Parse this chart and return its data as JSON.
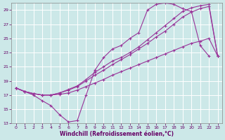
{
  "xlabel": "Windchill (Refroidissement éolien,°C)",
  "xlim": [
    -0.5,
    23.5
  ],
  "ylim": [
    13,
    30
  ],
  "xticks": [
    0,
    1,
    2,
    3,
    4,
    5,
    6,
    7,
    8,
    9,
    10,
    11,
    12,
    13,
    14,
    15,
    16,
    17,
    18,
    19,
    20,
    21,
    22,
    23
  ],
  "yticks": [
    13,
    15,
    17,
    19,
    21,
    23,
    25,
    27,
    29
  ],
  "bg_color": "#cce8e8",
  "grid_color": "#ffffff",
  "line_color": "#993399",
  "lines": [
    {
      "x": [
        0,
        1,
        2,
        3,
        4,
        5,
        6,
        7,
        8,
        9,
        10,
        11,
        12,
        13,
        14,
        15,
        16,
        17,
        18,
        19,
        20,
        21,
        22
      ],
      "y": [
        18,
        17.5,
        17,
        16.2,
        15.5,
        14.2,
        13.2,
        13.4,
        17,
        20.5,
        22.3,
        23.5,
        24,
        25,
        25.8,
        29,
        29.8,
        30,
        29.8,
        29.2,
        28.8,
        24,
        22.5
      ]
    },
    {
      "x": [
        0,
        1,
        2,
        3,
        4,
        5,
        6,
        7,
        8,
        9,
        10,
        11,
        12,
        13,
        14,
        15,
        16,
        17,
        18,
        19,
        20,
        21,
        22,
        23
      ],
      "y": [
        18,
        17.5,
        17.2,
        17,
        17,
        17.3,
        17.8,
        18.3,
        19.2,
        20.2,
        21,
        21.8,
        22.3,
        23,
        23.8,
        24.8,
        25.8,
        26.8,
        27.8,
        28.8,
        29.3,
        29.6,
        29.8,
        22.5
      ]
    },
    {
      "x": [
        0,
        1,
        2,
        3,
        4,
        5,
        6,
        7,
        8,
        9,
        10,
        11,
        12,
        13,
        14,
        15,
        16,
        17,
        18,
        19,
        20,
        21,
        22,
        23
      ],
      "y": [
        18,
        17.5,
        17.2,
        17,
        17,
        17.3,
        17.7,
        18.2,
        19,
        19.8,
        20.5,
        21.3,
        22,
        22.7,
        23.5,
        24.3,
        25.2,
        26,
        27,
        28,
        28.7,
        29.2,
        29.5,
        22.5
      ]
    },
    {
      "x": [
        0,
        1,
        2,
        3,
        4,
        5,
        6,
        7,
        8,
        9,
        10,
        11,
        12,
        13,
        14,
        15,
        16,
        17,
        18,
        19,
        20,
        21,
        22,
        23
      ],
      "y": [
        18,
        17.5,
        17.2,
        17,
        17,
        17.1,
        17.3,
        17.7,
        18.2,
        18.7,
        19.2,
        19.8,
        20.3,
        20.8,
        21.3,
        21.8,
        22.3,
        22.8,
        23.3,
        23.8,
        24.3,
        24.6,
        25,
        22.5
      ]
    }
  ]
}
